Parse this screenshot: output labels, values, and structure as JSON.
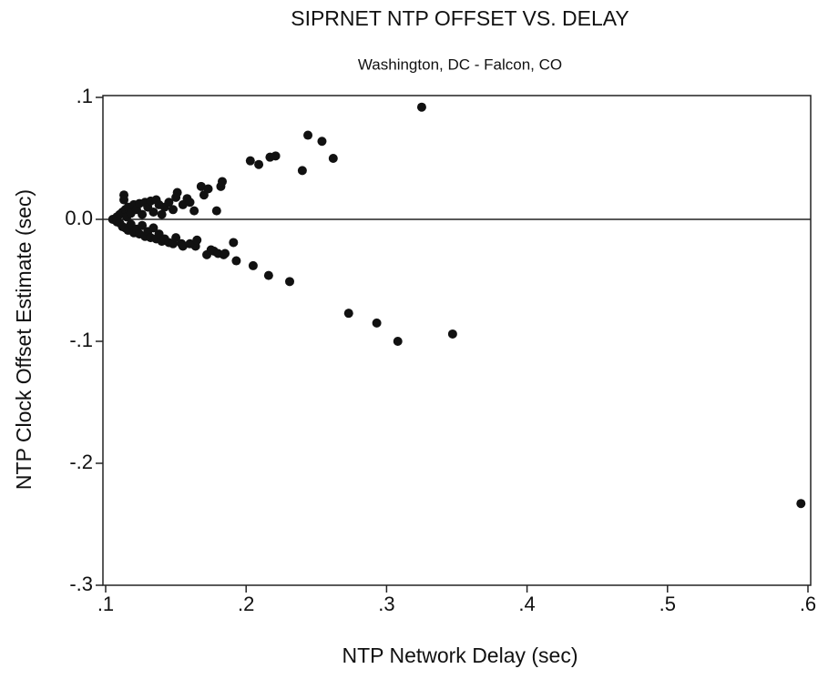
{
  "chart_data": {
    "type": "scatter",
    "title": "SIPRNET NTP OFFSET VS. DELAY",
    "subtitle": "Washington, DC - Falcon, CO",
    "x_label": "NTP Network Delay (sec)",
    "y_label": "NTP Clock Offset Estimate (sec)",
    "color": "#111111",
    "xlim": [
      0.1,
      0.6
    ],
    "ylim": [
      -0.3,
      0.1
    ],
    "xticks": [
      {
        "value": 0.1,
        "label": ".1"
      },
      {
        "value": 0.2,
        "label": ".2"
      },
      {
        "value": 0.3,
        "label": ".3"
      },
      {
        "value": 0.4,
        "label": ".4"
      },
      {
        "value": 0.5,
        "label": ".5"
      },
      {
        "value": 0.6,
        "label": ".6"
      }
    ],
    "yticks": [
      {
        "value": 0.1,
        "label": ".1"
      },
      {
        "value": 0,
        "label": "0.0"
      },
      {
        "value": -0.1,
        "label": "-.1"
      },
      {
        "value": -0.2,
        "label": "-.2"
      },
      {
        "value": -0.3,
        "label": "-.3"
      }
    ],
    "hline": 0,
    "grid": false,
    "x": [
      0.325,
      0.244,
      0.254,
      0.262,
      0.24,
      0.203,
      0.209,
      0.217,
      0.221,
      0.182,
      0.183,
      0.168,
      0.173,
      0.151,
      0.158,
      0.113,
      0.113,
      0.179,
      0.191,
      0.193,
      0.205,
      0.216,
      0.231,
      0.273,
      0.293,
      0.308,
      0.347,
      0.595,
      0.177,
      0.172,
      0.184,
      0.164,
      0.154,
      0.105,
      0.108,
      0.108,
      0.11,
      0.11,
      0.112,
      0.112,
      0.114,
      0.114,
      0.115,
      0.116,
      0.116,
      0.118,
      0.118,
      0.12,
      0.12,
      0.122,
      0.122,
      0.124,
      0.124,
      0.126,
      0.126,
      0.128,
      0.128,
      0.13,
      0.13,
      0.132,
      0.132,
      0.134,
      0.134,
      0.136,
      0.136,
      0.138,
      0.138,
      0.14,
      0.14,
      0.142,
      0.142,
      0.145,
      0.145,
      0.148,
      0.148,
      0.15,
      0.15,
      0.155,
      0.155,
      0.16,
      0.16,
      0.163,
      0.165,
      0.17,
      0.175,
      0.18,
      0.185
    ],
    "values": [
      0.092,
      0.069,
      0.064,
      0.05,
      0.04,
      0.048,
      0.045,
      0.051,
      0.052,
      0.027,
      0.031,
      0.027,
      0.025,
      0.022,
      0.017,
      0.02,
      0.016,
      0.007,
      -0.019,
      -0.034,
      -0.038,
      -0.046,
      -0.051,
      -0.077,
      -0.085,
      -0.1,
      -0.094,
      -0.233,
      -0.026,
      -0.029,
      -0.029,
      -0.022,
      -0.02,
      0,
      0.002,
      -0.002,
      0.004,
      -0.003,
      0.006,
      -0.006,
      0.008,
      -0.007,
      0.002,
      0.01,
      -0.009,
      0.005,
      -0.004,
      0.012,
      -0.011,
      0.008,
      -0.008,
      0.013,
      -0.012,
      0.004,
      -0.005,
      0.014,
      -0.014,
      0.01,
      -0.01,
      0.015,
      -0.015,
      0.006,
      -0.007,
      0.016,
      -0.016,
      0.012,
      -0.012,
      0.004,
      -0.018,
      0.01,
      -0.016,
      0.014,
      -0.019,
      0.008,
      -0.02,
      0.018,
      -0.015,
      0.012,
      -0.022,
      0.014,
      -0.02,
      0.007,
      -0.017,
      0.02,
      -0.025,
      -0.028,
      -0.028
    ]
  }
}
